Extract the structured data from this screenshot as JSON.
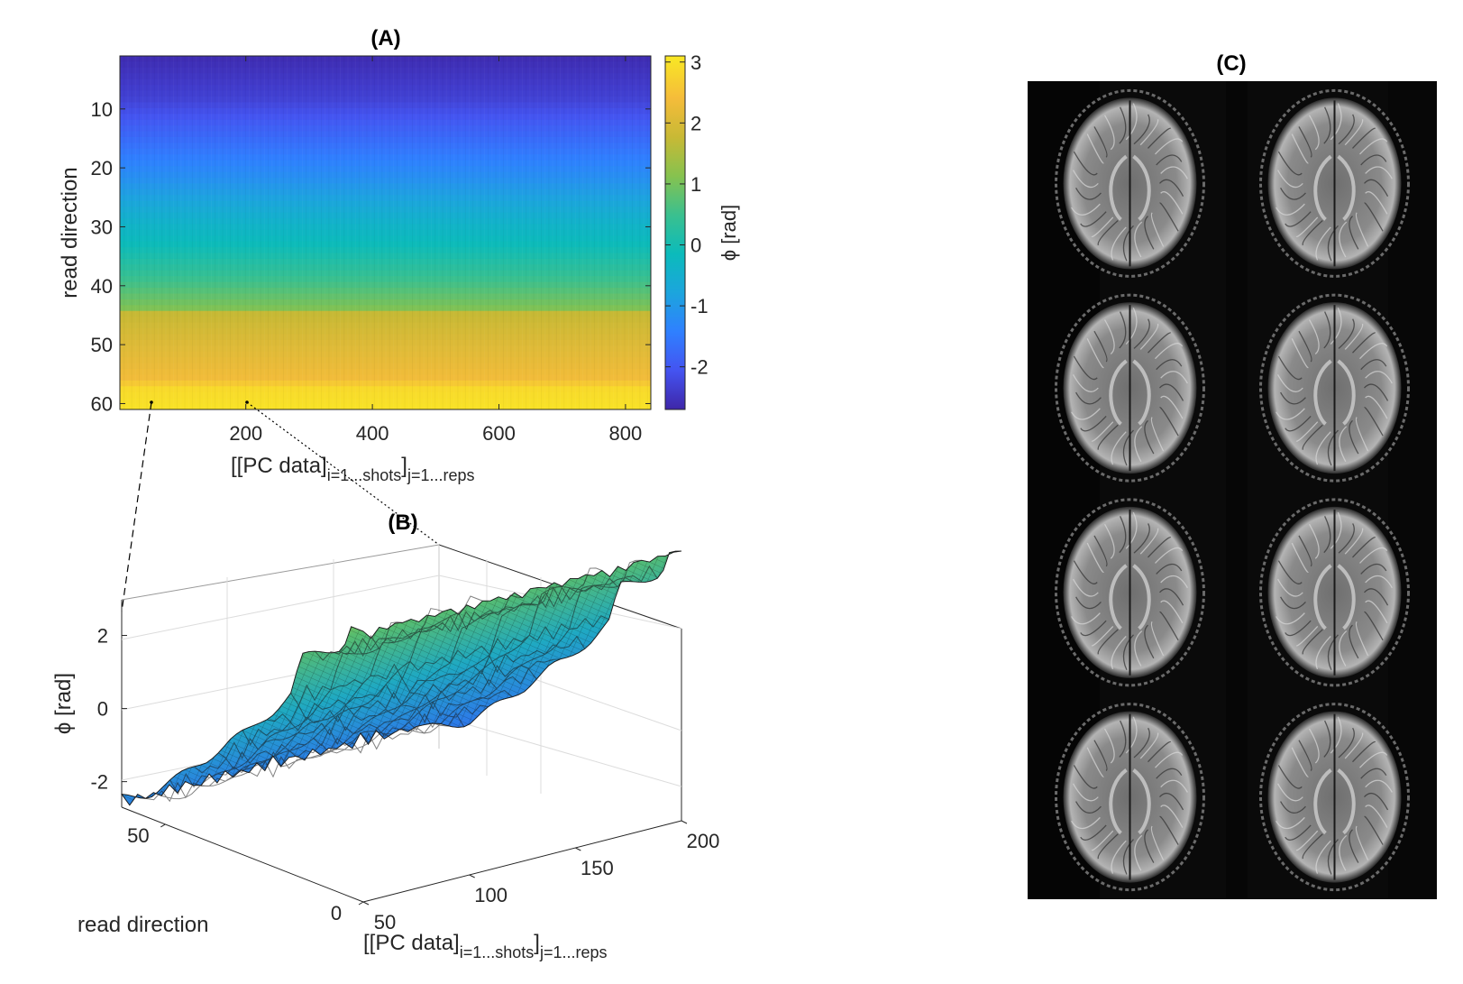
{
  "chart_data": [
    {
      "type": "heatmap",
      "title": "(A)",
      "xlabel": {
        "main": "[[PC data]",
        "sub1": "i=1...shots",
        "mid": "]",
        "sub2": "j=1...reps"
      },
      "ylabel": "read direction",
      "x_ticks": [
        200,
        400,
        600,
        800
      ],
      "y_ticks": [
        10,
        20,
        30,
        40,
        50,
        60
      ],
      "xlim": [
        1,
        840
      ],
      "ylim": [
        1,
        61
      ],
      "colorbar": {
        "label": "ϕ [rad]",
        "ticks": [
          3,
          2,
          1,
          0,
          -1,
          -2
        ],
        "range": [
          -2.7,
          3.1
        ]
      },
      "colormap": [
        "#3e26a8",
        "#4454f1",
        "#2f80ff",
        "#1ca5dd",
        "#0bbbbb",
        "#3ac08f",
        "#86c24f",
        "#c8b935",
        "#f5bc3a",
        "#f9e824"
      ],
      "phase_profile": [
        [
          1,
          -2.6
        ],
        [
          8,
          -2.3
        ],
        [
          15,
          -1.7
        ],
        [
          22,
          -1.1
        ],
        [
          28,
          -0.5
        ],
        [
          33,
          -0.1
        ],
        [
          38,
          0.4
        ],
        [
          44,
          1.1
        ],
        [
          45,
          1.8
        ],
        [
          50,
          2.1
        ],
        [
          56,
          2.4
        ],
        [
          58,
          2.9
        ],
        [
          61,
          3.0
        ]
      ]
    },
    {
      "type": "surface",
      "title": "(B)",
      "xlabel": {
        "main": "[[PC data]",
        "sub1": "i=1...shots",
        "mid": "]",
        "sub2": "j=1...reps"
      },
      "ylabel": "read direction",
      "zlabel": "ϕ [rad]",
      "x_ticks": [
        50,
        100,
        150,
        200
      ],
      "y_ticks": [
        0,
        50
      ],
      "z_ticks": [
        2,
        0,
        -2
      ],
      "xlim": [
        50,
        200
      ],
      "ylim": [
        0,
        61
      ],
      "zlim": [
        -2.7,
        3.0
      ]
    },
    {
      "type": "image",
      "title": "(C)",
      "grid": {
        "rows": 4,
        "cols": 2
      },
      "background": "#0a0a0a"
    }
  ]
}
